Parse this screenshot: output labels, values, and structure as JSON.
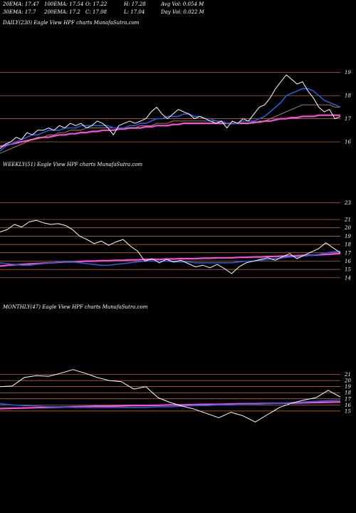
{
  "header": {
    "row1": [
      "20EMA: 17.47",
      "100EMA: 17.54",
      "O: 17.22",
      "H: 17.28",
      "Avg Vol: 0.054  M"
    ],
    "row2": [
      "30EMA: 17.7",
      "200EMA: 17.2",
      "C: 17.08",
      "L: 17.04",
      "Day Vol: 0.022  M"
    ]
  },
  "colors": {
    "background": "#000000",
    "price": "#ffffff",
    "ema_short": "#2b5bd6",
    "ema_long": "#ff4fd8",
    "ema_mid": "#c8a070",
    "grid": "#c87a3a"
  },
  "chart_data": [
    {
      "type": "line",
      "label": "DAILY(230) Eagle  View  HPF charts MunafaSutra.com",
      "y_ticks": [
        19,
        18,
        17,
        16
      ],
      "ylim": [
        15.2,
        19.3
      ],
      "series": [
        {
          "role": "price",
          "values": [
            15.7,
            15.9,
            16.0,
            16.2,
            16.1,
            16.4,
            16.3,
            16.5,
            16.5,
            16.6,
            16.5,
            16.7,
            16.6,
            16.8,
            16.7,
            16.8,
            16.6,
            16.7,
            16.9,
            16.8,
            16.6,
            16.3,
            16.7,
            16.8,
            16.9,
            16.8,
            16.9,
            17.0,
            17.3,
            17.5,
            17.2,
            17.0,
            17.2,
            17.4,
            17.3,
            17.2,
            17.0,
            17.1,
            17.0,
            16.9,
            16.8,
            16.9,
            16.6,
            16.9,
            16.8,
            17.0,
            16.9,
            17.2,
            17.5,
            17.6,
            17.9,
            18.3,
            18.6,
            18.9,
            18.7,
            18.5,
            18.6,
            18.2,
            17.9,
            17.5,
            17.3,
            17.4,
            17.0,
            17.1
          ]
        },
        {
          "role": "ema_short",
          "values": [
            15.6,
            15.8,
            15.9,
            16.0,
            16.1,
            16.2,
            16.3,
            16.3,
            16.4,
            16.5,
            16.5,
            16.5,
            16.6,
            16.6,
            16.6,
            16.7,
            16.7,
            16.7,
            16.7,
            16.7,
            16.7,
            16.6,
            16.6,
            16.6,
            16.7,
            16.7,
            16.8,
            16.8,
            16.9,
            17.0,
            17.0,
            17.1,
            17.1,
            17.1,
            17.2,
            17.2,
            17.1,
            17.1,
            17.0,
            17.0,
            16.9,
            16.9,
            16.8,
            16.8,
            16.8,
            16.9,
            16.9,
            16.9,
            17.0,
            17.1,
            17.3,
            17.5,
            17.7,
            18.0,
            18.1,
            18.2,
            18.3,
            18.3,
            18.2,
            18.0,
            17.8,
            17.7,
            17.6,
            17.5
          ]
        },
        {
          "role": "ema_mid",
          "values": [
            15.5,
            15.6,
            15.7,
            15.8,
            15.9,
            16.0,
            16.1,
            16.2,
            16.2,
            16.3,
            16.3,
            16.4,
            16.4,
            16.5,
            16.5,
            16.5,
            16.6,
            16.6,
            16.6,
            16.6,
            16.6,
            16.6,
            16.6,
            16.6,
            16.6,
            16.6,
            16.7,
            16.7,
            16.7,
            16.8,
            16.8,
            16.8,
            16.9,
            16.9,
            16.9,
            16.9,
            16.9,
            16.9,
            16.9,
            16.9,
            16.9,
            16.8,
            16.8,
            16.8,
            16.8,
            16.8,
            16.8,
            16.8,
            16.9,
            16.9,
            17.0,
            17.1,
            17.2,
            17.3,
            17.4,
            17.5,
            17.6,
            17.6,
            17.6,
            17.6,
            17.6,
            17.6,
            17.5,
            17.5
          ]
        },
        {
          "role": "ema_long",
          "values": [
            15.8,
            15.85,
            15.9,
            15.95,
            16.0,
            16.05,
            16.1,
            16.15,
            16.2,
            16.2,
            16.25,
            16.3,
            16.3,
            16.35,
            16.35,
            16.4,
            16.4,
            16.45,
            16.45,
            16.5,
            16.5,
            16.5,
            16.55,
            16.55,
            16.6,
            16.6,
            16.6,
            16.65,
            16.65,
            16.7,
            16.7,
            16.7,
            16.75,
            16.75,
            16.8,
            16.8,
            16.8,
            16.8,
            16.8,
            16.8,
            16.8,
            16.8,
            16.8,
            16.8,
            16.8,
            16.8,
            16.8,
            16.85,
            16.85,
            16.9,
            16.9,
            16.95,
            17.0,
            17.0,
            17.05,
            17.05,
            17.1,
            17.1,
            17.1,
            17.15,
            17.15,
            17.15,
            17.15,
            17.15
          ]
        }
      ]
    },
    {
      "type": "line",
      "label": "WEEKLY(51) Eagle  View  HPF charts MunafaSutra.com",
      "y_ticks": [
        23,
        21,
        20,
        19,
        18,
        17,
        16,
        15,
        14
      ],
      "ylim": [
        13.3,
        23.4
      ],
      "series": [
        {
          "role": "price",
          "values": [
            19.5,
            19.8,
            20.4,
            20.1,
            20.7,
            20.9,
            20.6,
            20.4,
            20.5,
            20.3,
            19.8,
            19.0,
            18.6,
            18.1,
            18.4,
            17.9,
            18.3,
            18.6,
            17.8,
            17.2,
            16.0,
            16.3,
            15.8,
            16.2,
            15.9,
            16.1,
            15.7,
            15.3,
            15.5,
            15.2,
            15.6,
            15.1,
            14.5,
            15.3,
            15.8,
            16.0,
            16.2,
            16.4,
            16.1,
            16.5,
            16.9,
            16.3,
            16.7,
            17.1,
            17.5,
            18.2,
            17.6,
            17.0
          ]
        },
        {
          "role": "ema_short",
          "values": [
            15.8,
            15.7,
            15.6,
            15.5,
            15.5,
            15.6,
            15.7,
            15.8,
            15.9,
            15.9,
            15.9,
            15.8,
            15.7,
            15.6,
            15.5,
            15.5,
            15.6,
            15.7,
            15.8,
            15.9,
            16.0,
            16.0,
            16.0,
            16.0,
            15.9,
            15.9,
            15.9,
            15.8,
            15.8,
            15.8,
            15.8,
            15.8,
            15.8,
            15.9,
            16.0,
            16.0,
            16.1,
            16.2,
            16.3,
            16.4,
            16.5,
            16.5,
            16.6,
            16.7,
            16.8,
            17.0,
            17.1,
            17.2
          ]
        },
        {
          "role": "ema_long",
          "values": [
            15.4,
            15.5,
            15.55,
            15.6,
            15.65,
            15.7,
            15.75,
            15.8,
            15.85,
            15.9,
            15.9,
            15.95,
            16.0,
            16.0,
            16.05,
            16.05,
            16.1,
            16.1,
            16.15,
            16.15,
            16.2,
            16.2,
            16.2,
            16.25,
            16.25,
            16.3,
            16.3,
            16.3,
            16.35,
            16.35,
            16.4,
            16.4,
            16.4,
            16.45,
            16.45,
            16.5,
            16.5,
            16.55,
            16.55,
            16.6,
            16.6,
            16.65,
            16.7,
            16.7,
            16.75,
            16.8,
            16.85,
            16.9
          ]
        }
      ]
    },
    {
      "type": "line",
      "label": "MONTHLY(47) Eagle  View  HPF charts MunafaSutra.com",
      "y_ticks": [
        21,
        20,
        19,
        18,
        17,
        16,
        15
      ],
      "ylim": [
        12.3,
        23.4
      ],
      "series": [
        {
          "role": "price",
          "values": [
            19.0,
            19.1,
            20.5,
            20.8,
            20.7,
            21.2,
            21.8,
            21.2,
            20.5,
            20.0,
            19.8,
            18.6,
            19.0,
            17.2,
            16.4,
            15.8,
            15.3,
            14.6,
            13.9,
            14.8,
            14.2,
            13.2,
            14.4,
            15.6,
            16.3,
            16.8,
            17.2,
            18.4,
            17.3
          ]
        },
        {
          "role": "ema_short",
          "values": [
            16.2,
            16.0,
            15.9,
            15.8,
            15.7,
            15.7,
            15.6,
            15.6,
            15.6,
            15.6,
            15.6,
            15.6,
            15.6,
            15.7,
            15.7,
            15.8,
            15.9,
            15.9,
            16.0,
            16.0,
            16.1,
            16.1,
            16.2,
            16.3,
            16.4,
            16.5,
            16.6,
            16.7,
            16.8
          ]
        },
        {
          "role": "ema_long",
          "values": [
            15.4,
            15.45,
            15.5,
            15.55,
            15.6,
            15.65,
            15.7,
            15.75,
            15.8,
            15.8,
            15.85,
            15.9,
            15.9,
            15.95,
            16.0,
            16.0,
            16.05,
            16.1,
            16.1,
            16.15,
            16.2,
            16.2,
            16.25,
            16.3,
            16.3,
            16.35,
            16.4,
            16.45,
            16.5
          ]
        }
      ]
    }
  ]
}
